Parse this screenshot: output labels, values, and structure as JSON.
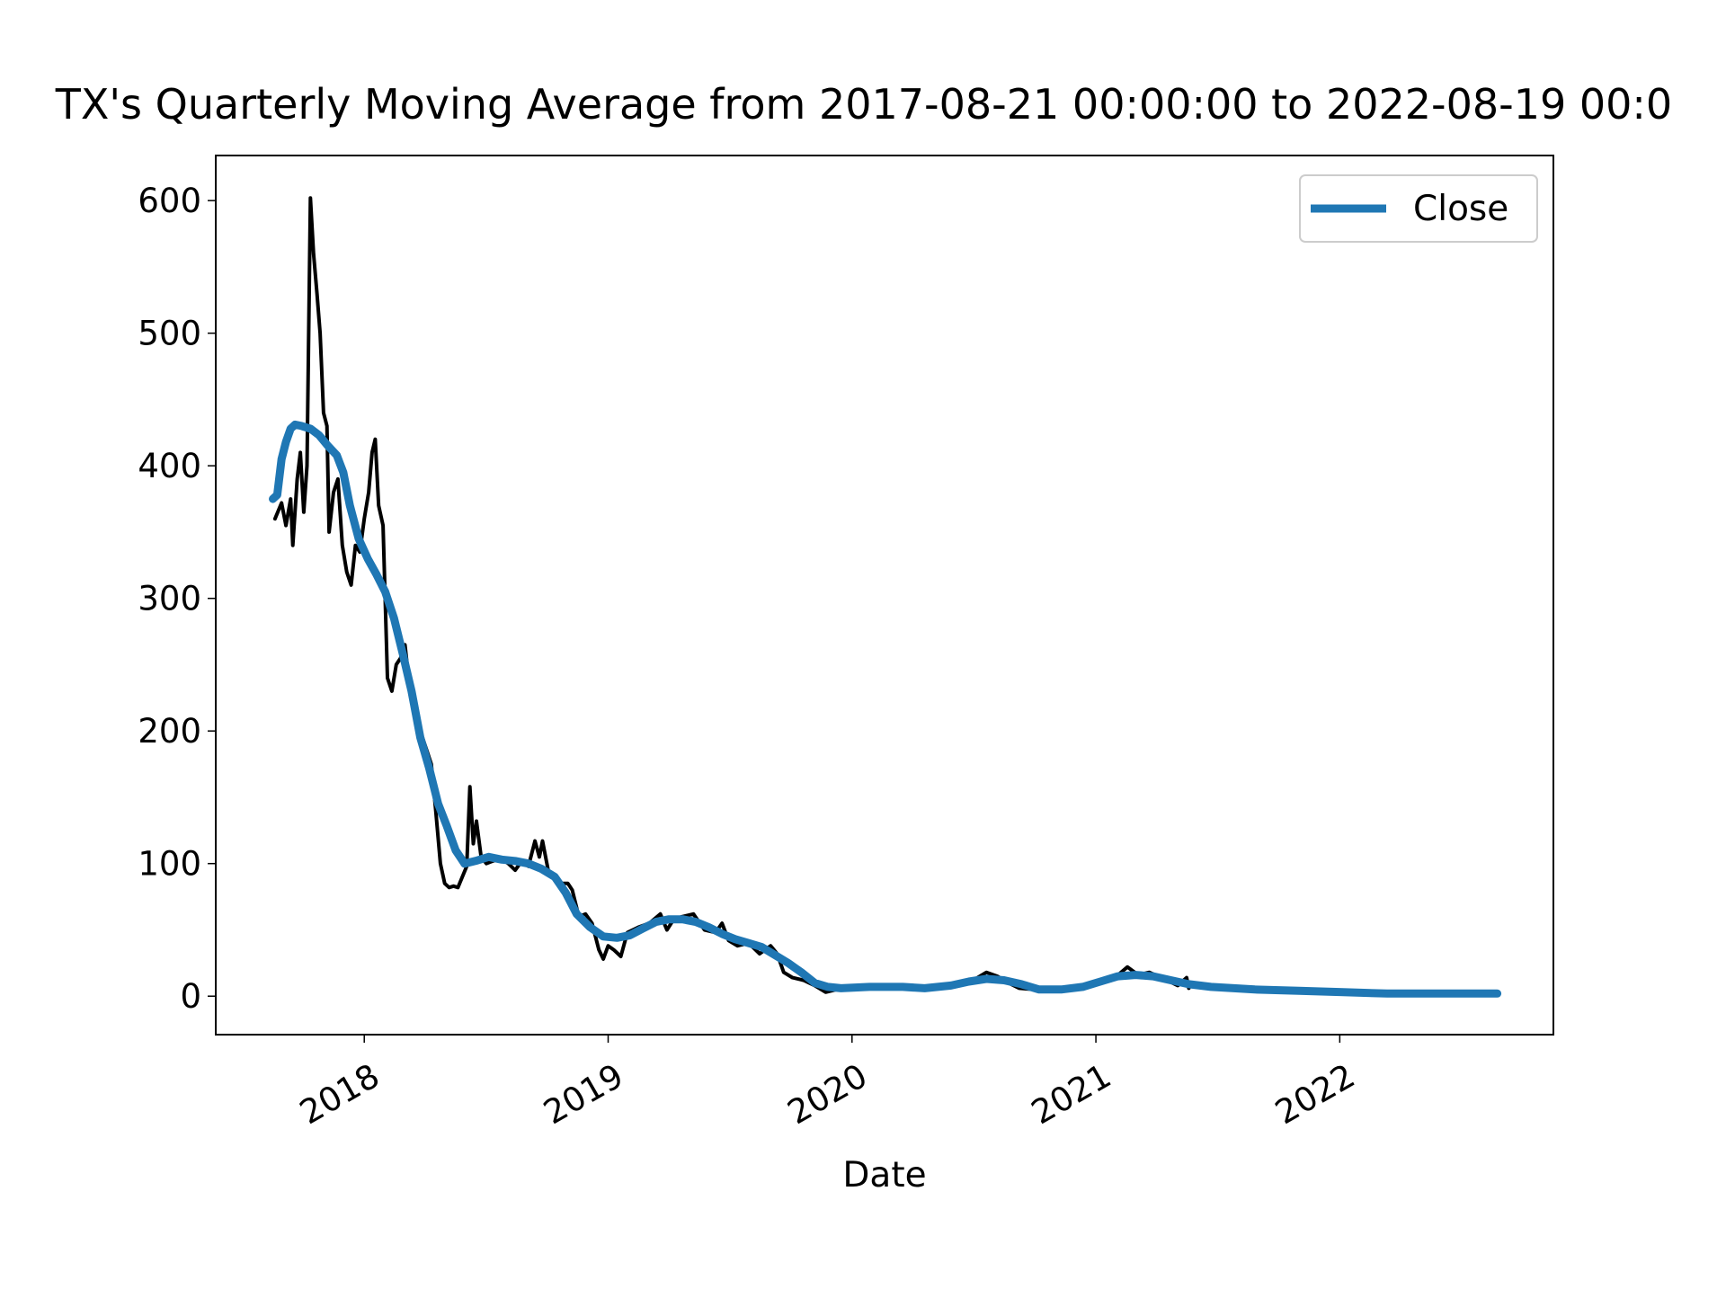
{
  "chart_data": {
    "type": "line",
    "title": "TX's Quarterly Moving Average from 2017-08-21 00:00:00 to 2022-08-19 00:0",
    "x_label": "Date",
    "legend": "upper right",
    "xlim": [
      2017.391,
      2022.876
    ],
    "xticks": [
      2018,
      2019,
      2020,
      2021,
      2022
    ],
    "ylim": [
      -29,
      634
    ],
    "yticks": [
      0,
      100,
      200,
      300,
      400,
      500,
      600
    ],
    "series": [
      {
        "color": "#000000",
        "x": [
          2017.634,
          2017.661,
          2017.679,
          2017.698,
          2017.707,
          2017.725,
          2017.738,
          2017.752,
          2017.765,
          2017.779,
          2017.792,
          2017.806,
          2017.819,
          2017.833,
          2017.847,
          2017.856,
          2017.874,
          2017.892,
          2017.91,
          2017.928,
          2017.946,
          2017.964,
          2017.982,
          2018.0,
          2018.018,
          2018.032,
          2018.045,
          2018.059,
          2018.077,
          2018.095,
          2018.113,
          2018.131,
          2018.149,
          2018.167,
          2018.185,
          2018.203,
          2018.221,
          2018.239,
          2018.257,
          2018.275,
          2018.293,
          2018.312,
          2018.33,
          2018.348,
          2018.366,
          2018.384,
          2018.402,
          2018.42,
          2018.433,
          2018.447,
          2018.46,
          2018.479,
          2018.501,
          2018.528,
          2018.56,
          2018.591,
          2018.619,
          2018.646,
          2018.673,
          2018.7,
          2018.718,
          2018.731,
          2018.754,
          2018.781,
          2018.808,
          2018.835,
          2018.853,
          2018.88,
          2018.907,
          2018.934,
          2018.962,
          2018.98,
          2019.0,
          2019.023,
          2019.052,
          2019.079,
          2019.124,
          2019.169,
          2019.214,
          2019.241,
          2019.269,
          2019.305,
          2019.35,
          2019.395,
          2019.44,
          2019.467,
          2019.494,
          2019.53,
          2019.576,
          2019.621,
          2019.666,
          2019.693,
          2019.72,
          2019.756,
          2019.801,
          2019.847,
          2019.892,
          2019.937,
          2020.0,
          2020.117,
          2020.253,
          2020.388,
          2020.479,
          2020.551,
          2020.596,
          2020.641,
          2020.686,
          2020.749,
          2020.84,
          2020.93,
          2021.0,
          2021.065,
          2021.129,
          2021.174,
          2021.219,
          2021.291,
          2021.336,
          2021.372,
          2021.381
        ],
        "values": [
          360,
          372,
          355,
          375,
          340,
          390,
          410,
          365,
          400,
          602,
          560,
          530,
          500,
          440,
          430,
          350,
          380,
          390,
          340,
          320,
          310,
          340,
          335,
          360,
          380,
          410,
          420,
          370,
          355,
          240,
          230,
          250,
          255,
          265,
          235,
          215,
          205,
          195,
          185,
          175,
          140,
          100,
          85,
          82,
          83,
          82,
          90,
          98,
          158,
          115,
          132,
          105,
          100,
          102,
          104,
          100,
          95,
          102,
          98,
          117,
          105,
          117,
          95,
          88,
          85,
          85,
          80,
          60,
          62,
          55,
          35,
          28,
          38,
          35,
          30,
          48,
          52,
          55,
          62,
          50,
          58,
          60,
          62,
          50,
          48,
          55,
          42,
          38,
          40,
          32,
          38,
          32,
          18,
          14,
          12,
          8,
          3,
          5,
          6,
          7,
          5,
          8,
          10,
          18,
          15,
          10,
          6,
          5,
          5,
          7,
          10,
          12,
          22,
          16,
          18,
          12,
          8,
          14,
          6
        ]
      },
      {
        "name": "Close",
        "color": "#1f77b4",
        "x": [
          2017.625,
          2017.643,
          2017.661,
          2017.679,
          2017.698,
          2017.716,
          2017.743,
          2017.779,
          2017.815,
          2017.851,
          2017.887,
          2017.914,
          2017.941,
          2017.977,
          2018.014,
          2018.05,
          2018.086,
          2018.122,
          2018.158,
          2018.194,
          2018.23,
          2018.266,
          2018.303,
          2018.339,
          2018.375,
          2018.411,
          2018.456,
          2018.51,
          2018.564,
          2018.619,
          2018.673,
          2018.727,
          2018.781,
          2018.826,
          2018.871,
          2018.926,
          2018.98,
          2019.036,
          2019.09,
          2019.142,
          2019.196,
          2019.25,
          2019.305,
          2019.359,
          2019.413,
          2019.467,
          2019.521,
          2019.576,
          2019.63,
          2019.684,
          2019.738,
          2019.792,
          2019.847,
          2019.901,
          2019.955,
          2020.072,
          2020.208,
          2020.298,
          2020.406,
          2020.479,
          2020.551,
          2020.623,
          2020.695,
          2020.767,
          2020.858,
          2020.946,
          2021.018,
          2021.09,
          2021.163,
          2021.235,
          2021.307,
          2021.381,
          2021.472,
          2021.652,
          2021.833,
          2022.014,
          2022.194,
          2022.375,
          2022.646
        ],
        "values": [
          375,
          378,
          405,
          418,
          428,
          431,
          430,
          428,
          423,
          415,
          408,
          395,
          370,
          345,
          330,
          318,
          305,
          285,
          258,
          230,
          195,
          172,
          145,
          128,
          110,
          100,
          102,
          105,
          103,
          102,
          100,
          96,
          90,
          78,
          62,
          52,
          45,
          44,
          46,
          51,
          56,
          58,
          58,
          56,
          52,
          47,
          43,
          40,
          37,
          31,
          25,
          18,
          10,
          7,
          6,
          7,
          7,
          6,
          8,
          11,
          13,
          12,
          9,
          5,
          5,
          7,
          11,
          15,
          16,
          15,
          12,
          9,
          7,
          5,
          4,
          3,
          2,
          2,
          2
        ]
      }
    ]
  }
}
